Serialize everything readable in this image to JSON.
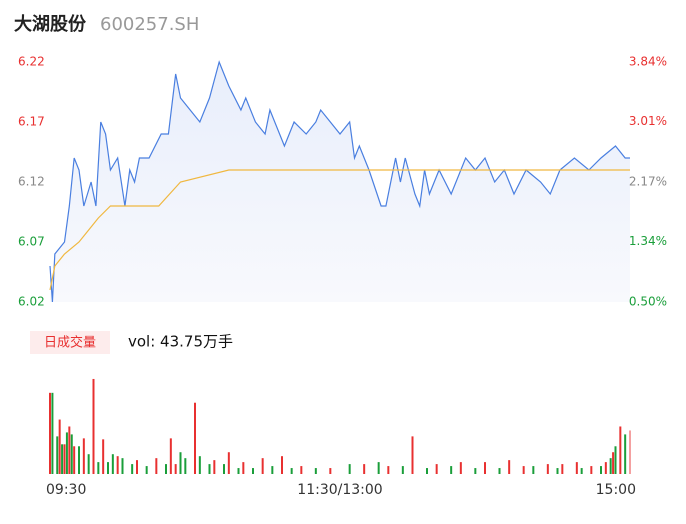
{
  "chart_data": {
    "type": "line",
    "title": "大湖股份",
    "subtitle": "600257.SH",
    "xlim": [
      0,
      240
    ],
    "xticks": [
      {
        "value": 0,
        "label": "09:30"
      },
      {
        "value": 120,
        "label": "11:30/13:00"
      },
      {
        "value": 240,
        "label": "15:00"
      }
    ],
    "ylim": [
      6.02,
      6.22
    ],
    "yticks": [
      6.22,
      6.17,
      6.12,
      6.07,
      6.02
    ],
    "y2lim": [
      0.5,
      3.84
    ],
    "y2ticks": [
      {
        "value": 3.84,
        "label": "3.84%"
      },
      {
        "value": 3.01,
        "label": "3.01%"
      },
      {
        "value": 2.17,
        "label": "2.17%"
      },
      {
        "value": 1.34,
        "label": "1.34%"
      },
      {
        "value": 0.5,
        "label": "0.50%"
      }
    ],
    "ytick_colors": [
      "#e83030",
      "#e83030",
      "#888888",
      "#1a9e3a",
      "#1a9e3a"
    ],
    "series": [
      {
        "color": "#4a7fe0",
        "x": [
          0,
          1,
          2,
          6,
          8,
          10,
          12,
          14,
          17,
          19,
          21,
          23,
          25,
          28,
          31,
          33,
          35,
          37,
          41,
          46,
          49,
          52,
          54,
          58,
          62,
          66,
          70,
          74,
          79,
          81,
          85,
          89,
          91,
          97,
          101,
          106,
          110,
          112,
          116,
          120,
          124,
          126,
          128,
          132,
          137,
          139,
          143,
          145,
          147,
          151,
          153,
          155,
          157,
          161,
          166,
          172,
          176,
          180,
          184,
          188,
          192,
          197,
          203,
          207,
          211,
          217,
          223,
          228,
          234,
          238,
          240
        ],
        "values": [
          6.05,
          6.02,
          6.06,
          6.07,
          6.1,
          6.14,
          6.13,
          6.1,
          6.12,
          6.1,
          6.17,
          6.16,
          6.13,
          6.14,
          6.1,
          6.13,
          6.12,
          6.14,
          6.14,
          6.16,
          6.16,
          6.21,
          6.19,
          6.18,
          6.17,
          6.19,
          6.22,
          6.2,
          6.18,
          6.19,
          6.17,
          6.16,
          6.18,
          6.15,
          6.17,
          6.16,
          6.17,
          6.18,
          6.17,
          6.16,
          6.17,
          6.14,
          6.15,
          6.13,
          6.1,
          6.1,
          6.14,
          6.12,
          6.14,
          6.11,
          6.1,
          6.13,
          6.11,
          6.13,
          6.11,
          6.14,
          6.13,
          6.14,
          6.12,
          6.13,
          6.11,
          6.13,
          6.12,
          6.11,
          6.13,
          6.14,
          6.13,
          6.14,
          6.15,
          6.14,
          6.14
        ]
      },
      {
        "color": "#f0b840",
        "x": [
          0,
          2,
          6,
          12,
          16,
          20,
          25,
          45,
          54,
          74,
          240
        ],
        "values": [
          6.03,
          6.05,
          6.06,
          6.07,
          6.08,
          6.09,
          6.1,
          6.1,
          6.12,
          6.13,
          6.13
        ]
      }
    ],
    "volume_label": "日成交量",
    "volume_text": "vol: 43.75万手",
    "volume_ylim": [
      0,
      100
    ],
    "volume_series": [
      {
        "color": "#e83030",
        "x": [
          0,
          4,
          6,
          8,
          10,
          14,
          18,
          22,
          28,
          36,
          44,
          50,
          52,
          60,
          68,
          74,
          80,
          88,
          96,
          104,
          116,
          130,
          140,
          150,
          160,
          170,
          180,
          190,
          196,
          206,
          212,
          218,
          224,
          230,
          233,
          236
        ],
        "values": [
          82,
          55,
          30,
          48,
          28,
          36,
          96,
          35,
          18,
          14,
          16,
          36,
          10,
          72,
          14,
          22,
          12,
          16,
          18,
          8,
          6,
          10,
          8,
          38,
          10,
          12,
          12,
          14,
          8,
          10,
          10,
          12,
          8,
          12,
          22,
          48
        ]
      },
      {
        "color": "#1a9e3a",
        "x": [
          1,
          3,
          5,
          7,
          9,
          12,
          16,
          20,
          24,
          26,
          30,
          34,
          40,
          48,
          54,
          56,
          62,
          66,
          72,
          78,
          84,
          92,
          100,
          110,
          124,
          136,
          146,
          156,
          166,
          176,
          186,
          200,
          210,
          220,
          228,
          232,
          234,
          238
        ],
        "values": [
          82,
          38,
          30,
          42,
          40,
          28,
          20,
          12,
          12,
          20,
          16,
          10,
          8,
          10,
          22,
          16,
          18,
          10,
          10,
          6,
          6,
          8,
          6,
          6,
          10,
          12,
          8,
          6,
          8,
          6,
          6,
          8,
          6,
          6,
          8,
          16,
          28,
          40
        ]
      },
      {
        "color": "#f4a0a0",
        "x": [
          240
        ],
        "values": [
          44
        ]
      }
    ]
  }
}
